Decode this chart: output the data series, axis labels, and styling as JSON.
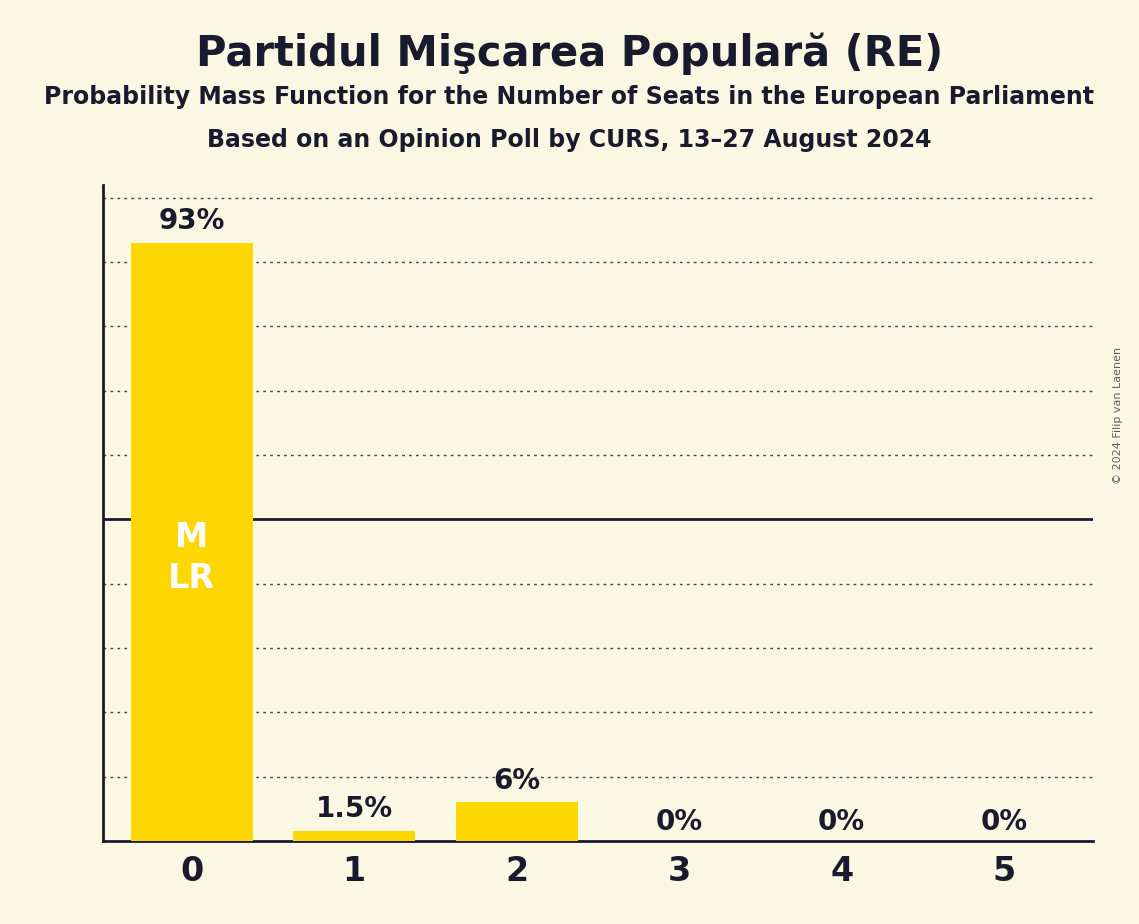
{
  "title": "Partidul Mişcarea Populară (RE)",
  "subtitle1": "Probability Mass Function for the Number of Seats in the European Parliament",
  "subtitle2": "Based on an Opinion Poll by CURS, 13–27 August 2024",
  "copyright": "© 2024 Filip van Laenen",
  "categories": [
    0,
    1,
    2,
    3,
    4,
    5
  ],
  "values": [
    0.93,
    0.015,
    0.06,
    0.0,
    0.0,
    0.0
  ],
  "bar_labels": [
    "93%",
    "1.5%",
    "6%",
    "0%",
    "0%",
    "0%"
  ],
  "bar_color": "#FFD700",
  "background_color": "#FAF8E3",
  "text_color": "#1a1a2e",
  "bar_label_inside": "M\nLR",
  "fifty_pct_line": 0.5,
  "title_fontsize": 30,
  "subtitle_fontsize": 17,
  "axis_fontsize": 24,
  "bar_label_fontsize": 20,
  "ylabel_fontsize": 24,
  "inside_label_fontsize": 24
}
